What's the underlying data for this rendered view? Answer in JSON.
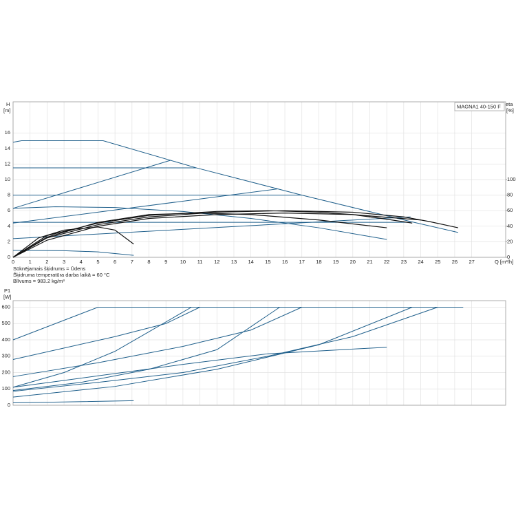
{
  "chart_data": [
    {
      "type": "line",
      "title": "MAGNA1 40-150 F",
      "ylabel": "H",
      "yunit": "[m]",
      "y2label": "eta",
      "y2unit": "[%]",
      "xlabel": "Q [m³/h]",
      "annotations": [
        "Sūknējamais šķidrums = Ūdens",
        "Šķidruma temperatūra darba laikā = 60 °C",
        "Blīvums = 983.2 kg/m³"
      ],
      "xlim": [
        0,
        29
      ],
      "xticks": [
        0,
        1,
        2,
        3,
        4,
        5,
        6,
        7,
        8,
        9,
        10,
        11,
        12,
        13,
        14,
        15,
        16,
        17,
        18,
        19,
        20,
        21,
        22,
        23,
        24,
        25,
        26,
        27
      ],
      "ylim": [
        0,
        20
      ],
      "yticks": [
        0,
        2,
        4,
        6,
        8,
        10,
        12,
        14,
        16
      ],
      "y2lim": [
        0,
        200
      ],
      "y2ticks": [
        0,
        20,
        40,
        60,
        80,
        100
      ],
      "grid": true,
      "series": [
        {
          "color": "#1f5f8b",
          "x": [
            0,
            0.5,
            5.3,
            10.8,
            17,
            23.4,
            26.2
          ],
          "values": [
            14.8,
            15,
            15,
            11.5,
            8,
            4.6,
            3.2
          ]
        },
        {
          "color": "#1f5f8b",
          "x": [
            0,
            10.8
          ],
          "values": [
            11.5,
            11.5
          ]
        },
        {
          "color": "#1f5f8b",
          "x": [
            0,
            17
          ],
          "values": [
            8,
            8
          ]
        },
        {
          "color": "#1f5f8b",
          "x": [
            0,
            23.4
          ],
          "values": [
            4.5,
            4.5
          ]
        },
        {
          "color": "#1f5f8b",
          "x": [
            0,
            9.3
          ],
          "values": [
            6.3,
            12.5
          ]
        },
        {
          "color": "#1f5f8b",
          "x": [
            0,
            15.6
          ],
          "values": [
            4.4,
            8.8
          ]
        },
        {
          "color": "#1f5f8b",
          "x": [
            0,
            23.4
          ],
          "values": [
            2.4,
            5.2
          ]
        },
        {
          "color": "#1f5f8b",
          "x": [
            0,
            2.5,
            6,
            10,
            14,
            18,
            22
          ],
          "values": [
            6.3,
            6.5,
            6.4,
            5.9,
            5,
            3.8,
            2.3
          ]
        },
        {
          "color": "#1f5f8b",
          "x": [
            0,
            3,
            5,
            7.1
          ],
          "values": [
            0.9,
            0.85,
            0.7,
            0.25
          ]
        },
        {
          "color": "#111111",
          "axis": "y2",
          "x": [
            0,
            2,
            5,
            8,
            12,
            16,
            20,
            23,
            24.5,
            26.2
          ],
          "values": [
            0,
            25,
            42,
            52,
            58,
            60,
            58,
            52,
            46,
            38
          ]
        },
        {
          "color": "#111111",
          "axis": "y2",
          "x": [
            0,
            2,
            5,
            8,
            12,
            15,
            18,
            20,
            22,
            23.5
          ],
          "values": [
            0,
            28,
            44,
            54,
            59,
            60,
            58,
            55,
            49,
            44
          ]
        },
        {
          "color": "#111111",
          "axis": "y2",
          "x": [
            0,
            2,
            5,
            8,
            11,
            14,
            18,
            22
          ],
          "values": [
            0,
            26,
            45,
            55,
            57,
            55,
            48,
            38
          ]
        },
        {
          "color": "#111111",
          "axis": "y2",
          "x": [
            0,
            2,
            5,
            8,
            12,
            16,
            20,
            24
          ],
          "values": [
            0,
            22,
            40,
            50,
            55,
            57,
            55,
            48
          ]
        },
        {
          "color": "#111111",
          "axis": "y2",
          "x": [
            0,
            1.5,
            3,
            5,
            6,
            7.1
          ],
          "values": [
            0,
            25,
            35,
            39,
            35,
            17
          ]
        }
      ]
    },
    {
      "type": "line",
      "ylabel": "P1",
      "yunit": "[W]",
      "xlim": [
        0,
        29
      ],
      "ylim": [
        0,
        640
      ],
      "yticks": [
        0,
        100,
        200,
        300,
        400,
        500,
        600
      ],
      "grid": true,
      "series": [
        {
          "color": "#1f5f8b",
          "x": [
            0,
            2,
            4,
            5,
            26.5
          ],
          "values": [
            400,
            480,
            560,
            600,
            600
          ]
        },
        {
          "color": "#1f5f8b",
          "x": [
            0,
            3,
            6,
            9,
            11
          ],
          "values": [
            280,
            350,
            420,
            500,
            600
          ]
        },
        {
          "color": "#1f5f8b",
          "x": [
            0,
            3,
            6,
            8,
            10.5
          ],
          "values": [
            110,
            200,
            330,
            450,
            600
          ]
        },
        {
          "color": "#1f5f8b",
          "x": [
            0,
            5,
            10,
            14,
            17
          ],
          "values": [
            175,
            260,
            360,
            460,
            600
          ]
        },
        {
          "color": "#1f5f8b",
          "x": [
            0,
            4,
            8,
            12,
            15.7
          ],
          "values": [
            90,
            140,
            220,
            340,
            600
          ]
        },
        {
          "color": "#1f5f8b",
          "x": [
            0,
            6,
            12,
            18,
            23.5
          ],
          "values": [
            50,
            115,
            220,
            370,
            600
          ]
        },
        {
          "color": "#1f5f8b",
          "x": [
            0,
            5,
            10,
            15,
            20,
            25
          ],
          "values": [
            85,
            140,
            200,
            300,
            420,
            600
          ]
        },
        {
          "color": "#1f5f8b",
          "x": [
            0,
            5,
            10,
            15,
            22
          ],
          "values": [
            110,
            180,
            250,
            315,
            355
          ]
        },
        {
          "color": "#1f5f8b",
          "x": [
            0,
            3,
            7.1
          ],
          "values": [
            15,
            20,
            28
          ]
        }
      ]
    }
  ]
}
